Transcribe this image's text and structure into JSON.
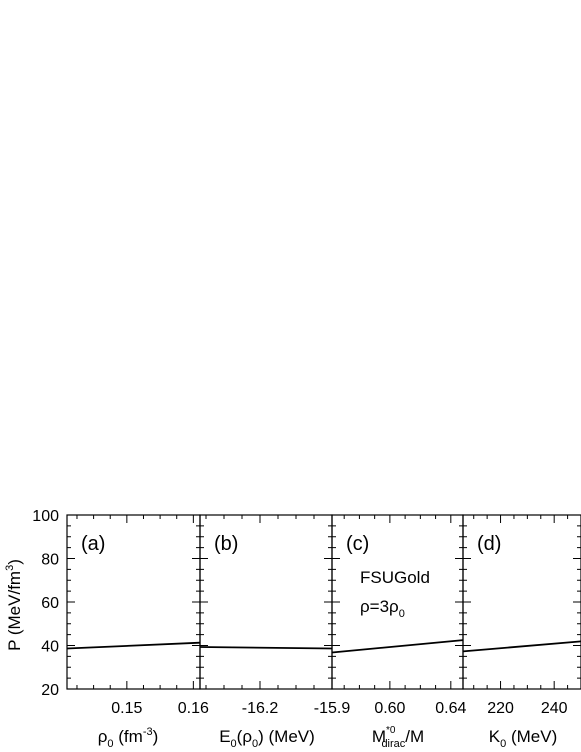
{
  "chart_data": {
    "type": "line",
    "shared_y": {
      "label": "P (MeV/fm",
      "label_sup": "3",
      "label_end": ")",
      "ylim": [
        20,
        100
      ],
      "ticks": [
        "20",
        "40",
        "60",
        "80",
        "100"
      ]
    },
    "annotation": {
      "model": "FSUGold",
      "density_base": "ρ=3ρ",
      "density_sub": "0"
    },
    "panels": [
      {
        "tag": "(a)",
        "xlabel": {
          "main": "ρ",
          "sub": "0",
          "rest": " (fm",
          "sup": "-3",
          "end": ")"
        },
        "xlim": [
          0.141,
          0.161
        ],
        "xticks": [
          {
            "v": 0.15,
            "t": "0.15"
          },
          {
            "v": 0.16,
            "t": "0.16"
          }
        ],
        "x": [
          0.141,
          0.161
        ],
        "y": [
          38.6,
          41.3
        ]
      },
      {
        "tag": "(b)",
        "xlabel": {
          "main": "E",
          "sub": "0",
          "rest": "(ρ",
          "sub2": "0",
          "end": ") (MeV)"
        },
        "xlim": [
          -16.45,
          -15.9
        ],
        "xticks": [
          {
            "v": -16.2,
            "t": "-16.2"
          },
          {
            "v": -15.9,
            "t": "-15.9"
          }
        ],
        "x": [
          -16.45,
          -15.9
        ],
        "y": [
          39.3,
          38.6
        ]
      },
      {
        "tag": "(c)",
        "xlabel": {
          "main": "M",
          "sup": "*0",
          "sub": "dirac",
          "end": "/M"
        },
        "xlim": [
          0.562,
          0.648
        ],
        "xticks": [
          {
            "v": 0.6,
            "t": "0.60"
          },
          {
            "v": 0.64,
            "t": "0.64"
          }
        ],
        "x": [
          0.562,
          0.648
        ],
        "y": [
          36.8,
          42.5
        ]
      },
      {
        "tag": "(d)",
        "xlabel": {
          "main": "K",
          "sub": "0",
          "end": " (MeV)"
        },
        "xlim": [
          206,
          250
        ],
        "xticks": [
          {
            "v": 220,
            "t": "220"
          },
          {
            "v": 240,
            "t": "240"
          }
        ],
        "x": [
          206,
          250
        ],
        "y": [
          37.3,
          41.9
        ]
      }
    ]
  }
}
